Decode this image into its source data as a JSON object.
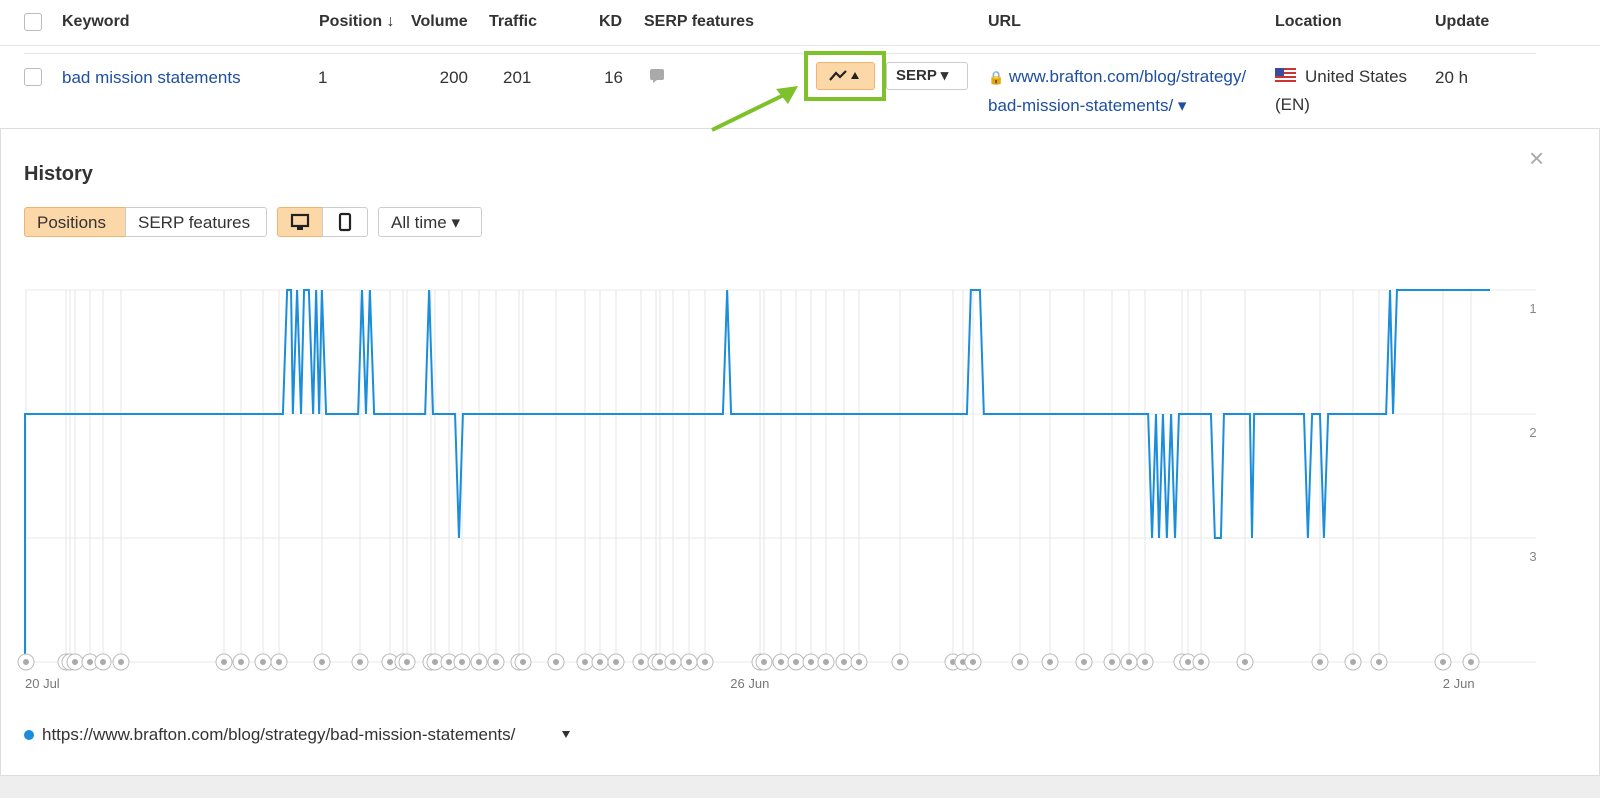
{
  "table": {
    "headers": [
      "Keyword",
      "Position ↓",
      "Volume",
      "Traffic",
      "KD",
      "SERP features",
      "URL",
      "Location",
      "Update"
    ],
    "row": {
      "keyword": "bad mission statements",
      "position": "1",
      "volume": "200",
      "traffic": "201",
      "kd": "16",
      "serp_button": "SERP",
      "url": "www.brafton.com/blog/strategy/bad-mission-statements/",
      "location": "United States (EN)",
      "update": "20 h"
    }
  },
  "history": {
    "title": "History",
    "tabs": [
      "Positions",
      "SERP features"
    ],
    "range": "All time"
  },
  "chart_data": {
    "type": "line",
    "x": [
      0,
      0,
      8.54,
      8.68,
      8.81,
      8.87,
      9.01,
      9.14,
      9.24,
      9.4,
      9.54,
      9.64,
      9.74,
      9.83,
      9.97,
      11.03,
      11.16,
      11.29,
      11.42,
      11.56,
      13.25,
      13.38,
      13.51,
      14.24,
      14.37,
      14.5,
      23.11,
      23.25,
      23.38,
      31.19,
      31.32,
      31.62,
      31.75,
      37.19,
      37.32,
      37.45,
      37.55,
      37.68,
      37.81,
      37.95,
      38.08,
      38.21,
      39.27,
      39.4,
      39.6,
      39.7,
      40.56,
      40.63,
      40.7,
      42.35,
      42.48,
      42.62,
      42.88,
      43.01,
      43.15,
      45.07,
      45.2,
      45.3,
      45.43,
      48.51
    ],
    "series": [
      {
        "name": "https://www.brafton.com/blog/strategy/bad-mission-statements/",
        "color": "#1a8ddb",
        "values": [
          4,
          2,
          2,
          1,
          1,
          2,
          1,
          2,
          1,
          1,
          2,
          1,
          2,
          1,
          2,
          2,
          1,
          2,
          1,
          2,
          2,
          1,
          2,
          2,
          3,
          2,
          2,
          1,
          2,
          2,
          1,
          1,
          2,
          2,
          3,
          2,
          3,
          2,
          3,
          2,
          3,
          2,
          2,
          3,
          3,
          2,
          2,
          3,
          2,
          2,
          3,
          2,
          2,
          3,
          2,
          2,
          1,
          2,
          1,
          1
        ]
      }
    ],
    "xlim": [
      0,
      48.51
    ],
    "xticks": [
      {
        "value": 0,
        "label": "20 Jul"
      },
      {
        "value": 24,
        "label": "26 Jun"
      },
      {
        "value": 48,
        "label": "2 Jun"
      }
    ],
    "ylim": [
      1,
      4
    ],
    "yticks": [
      1,
      2,
      3
    ],
    "y_inverted": true,
    "grid": true
  }
}
